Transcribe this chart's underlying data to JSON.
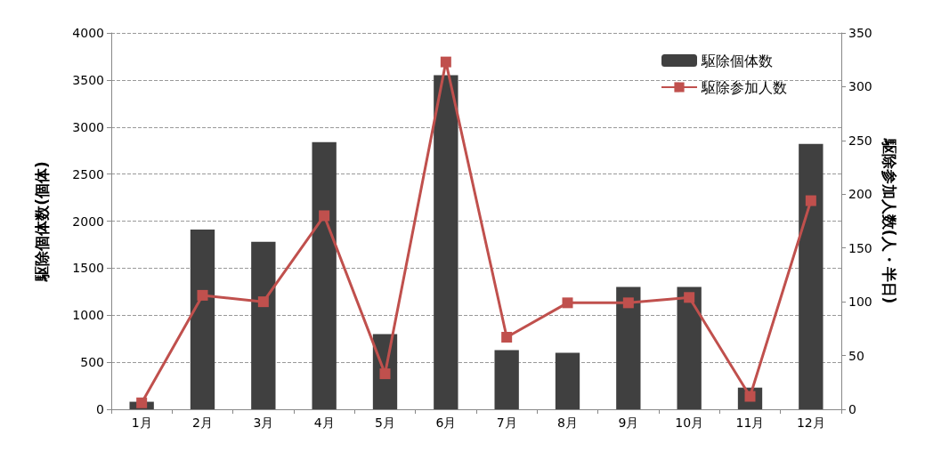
{
  "chart_data": {
    "type": "bar",
    "ylabel": "駆除個体数(個体)",
    "y2label": "駆除参加人数(人・半日)",
    "categories": [
      "1月",
      "2月",
      "3月",
      "4月",
      "5月",
      "6月",
      "7月",
      "8月",
      "9月",
      "10月",
      "11月",
      "12月"
    ],
    "series": [
      {
        "name": "駆除個体数",
        "color": "#404040",
        "values": [
          80,
          1910,
          1780,
          2840,
          800,
          3550,
          630,
          600,
          1300,
          1300,
          230,
          2820
        ]
      },
      {
        "name": "駆除参加人数",
        "type": "line",
        "axis": "y2",
        "color": "#c0504d",
        "marker": "square",
        "values": [
          6,
          106,
          100,
          180,
          33,
          323,
          67,
          99,
          99,
          104,
          12,
          194
        ]
      }
    ],
    "ylim": [
      0,
      4000
    ],
    "yticks": [
      0,
      500,
      1000,
      1500,
      2000,
      2500,
      3000,
      3500,
      4000
    ],
    "y2lim": [
      0,
      350
    ],
    "y2ticks": [
      0,
      50,
      100,
      150,
      200,
      250,
      300,
      350
    ],
    "grid": "y",
    "legend": "top right"
  }
}
